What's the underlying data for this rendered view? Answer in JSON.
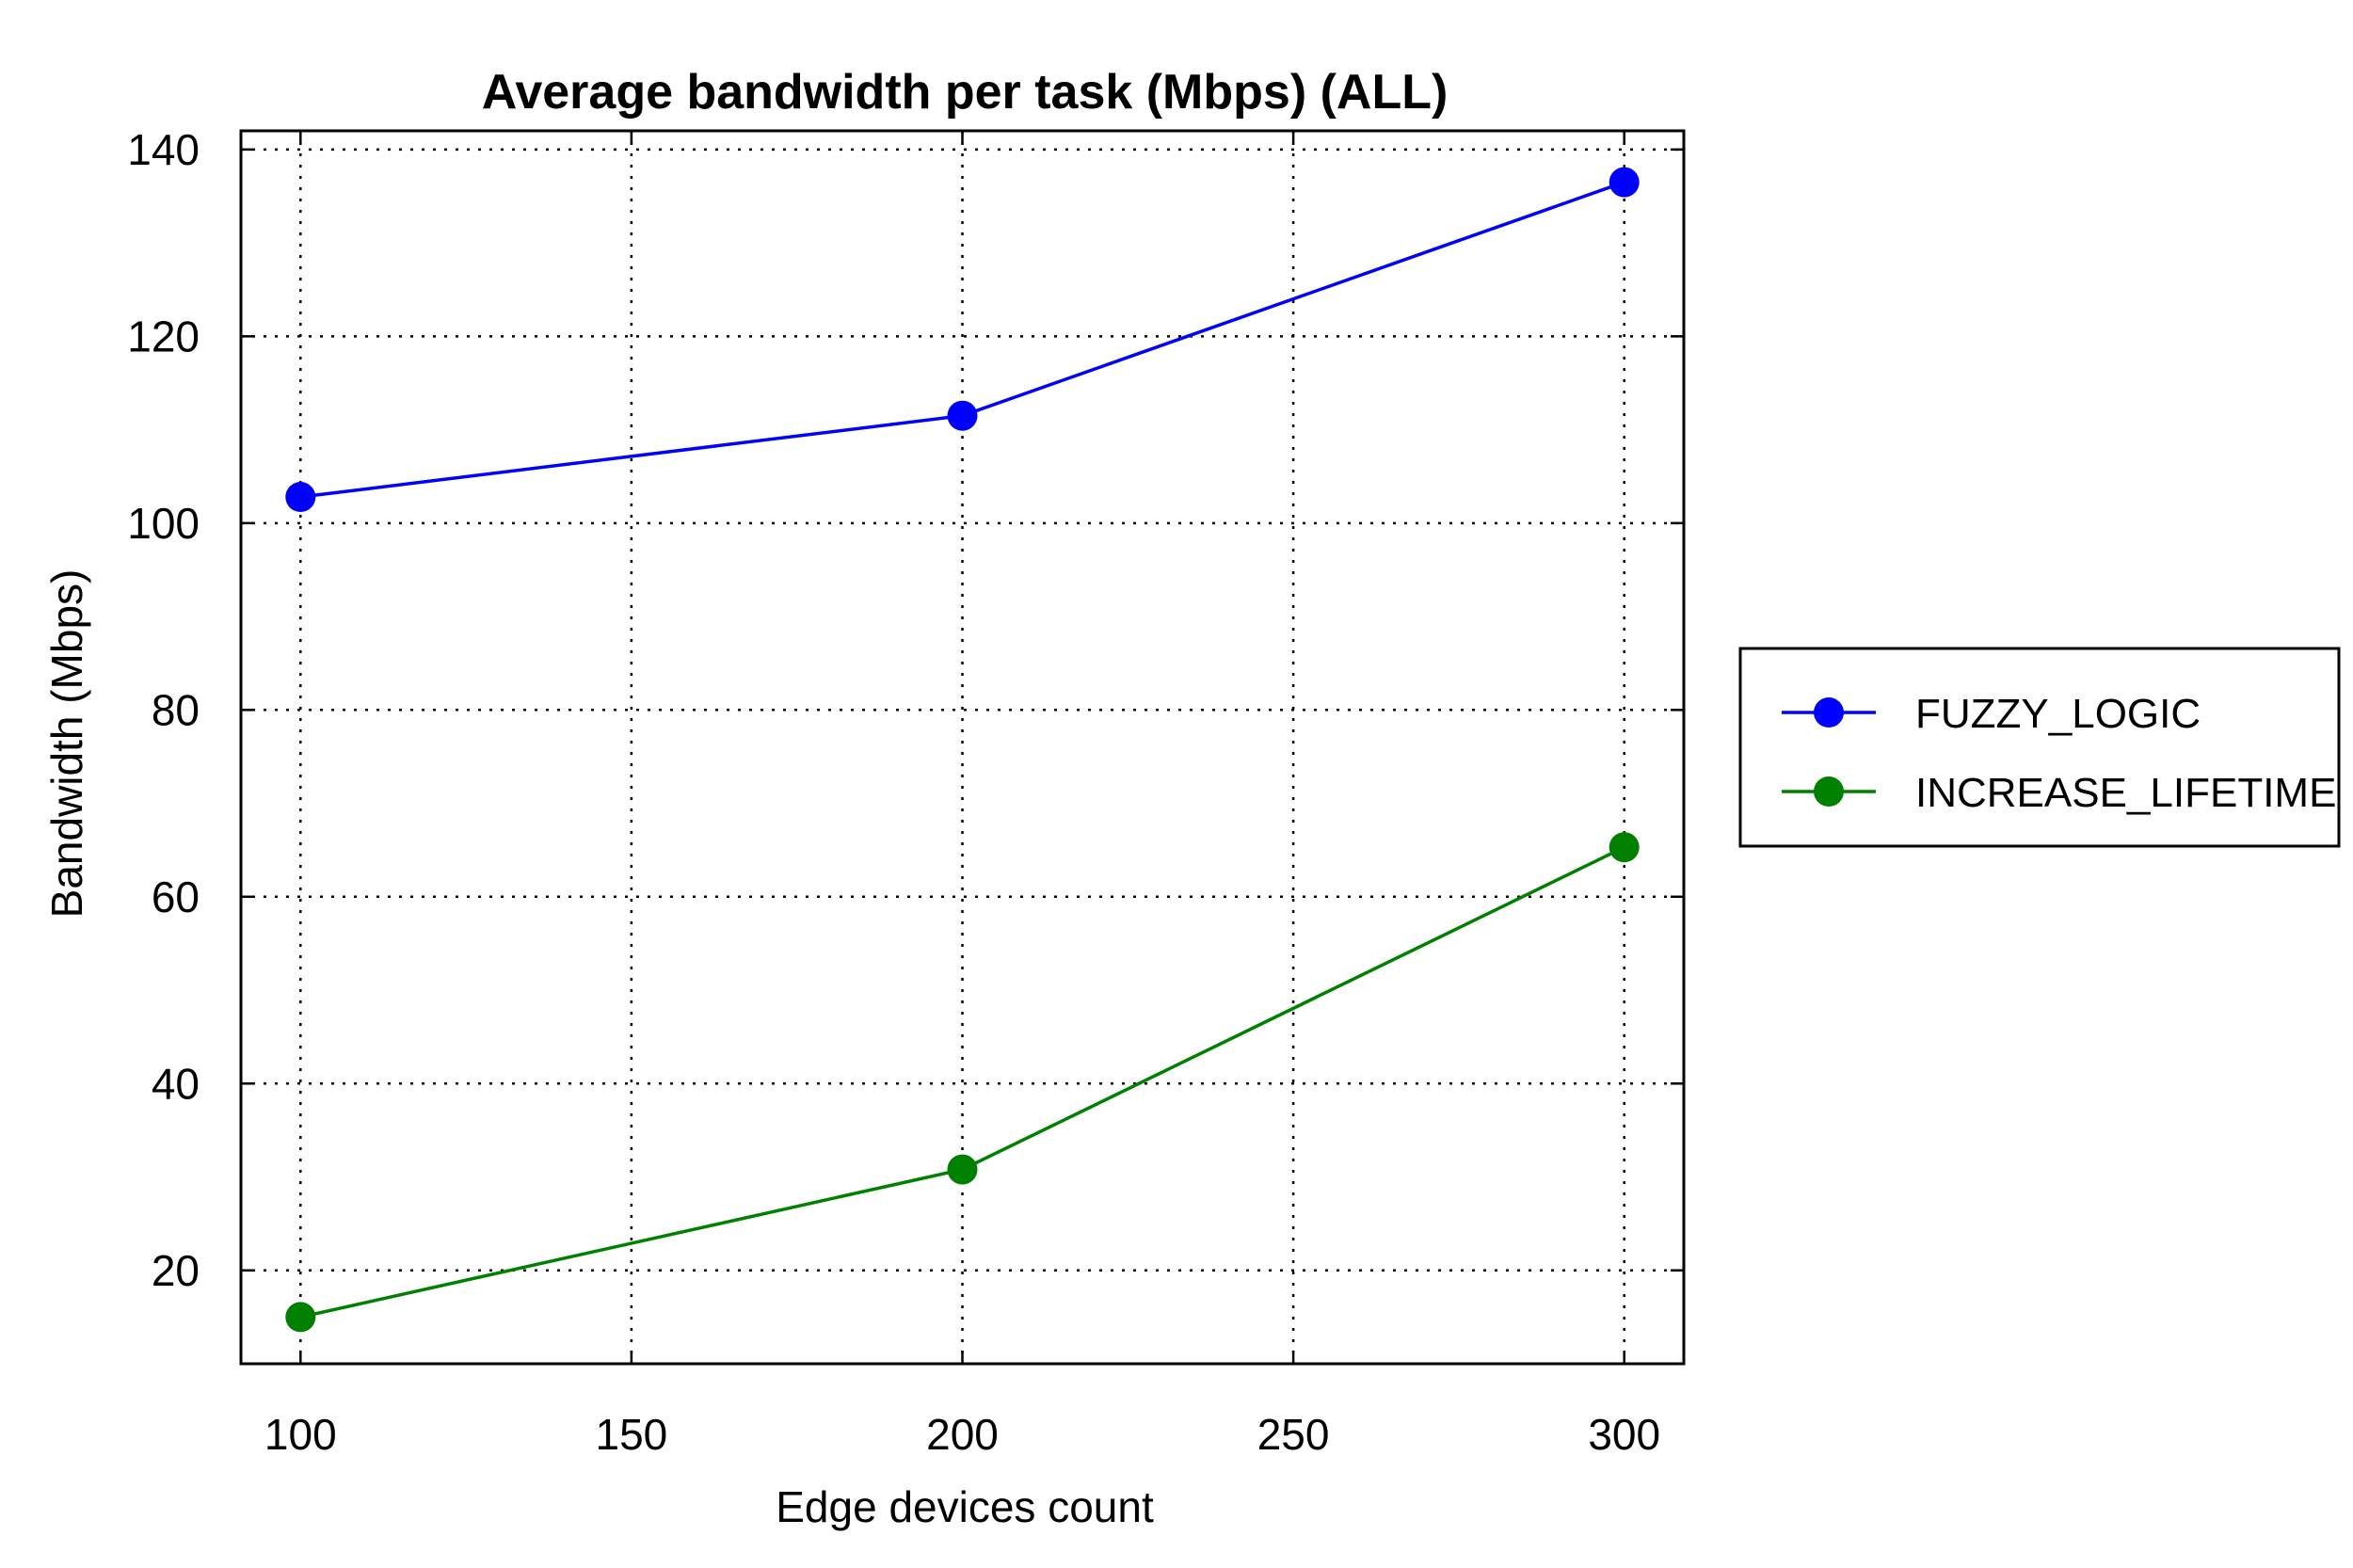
{
  "chart_data": {
    "type": "line",
    "title": "Average bandwidth per task (Mbps) (ALL)",
    "xlabel": "Edge devices count",
    "ylabel": "Bandwidth (Mbps)",
    "x": [
      100,
      200,
      300
    ],
    "xlim": [
      91,
      309
    ],
    "ylim": [
      10,
      142
    ],
    "xticks": [
      100,
      150,
      200,
      250,
      300
    ],
    "yticks": [
      20,
      40,
      60,
      80,
      100,
      120,
      140
    ],
    "grid": true,
    "legend_position": "right",
    "series": [
      {
        "name": "FUZZY_LOGIC",
        "color": "#0000ff",
        "marker": "circle",
        "values": [
          102.8,
          111.5,
          136.5
        ]
      },
      {
        "name": "INCREASE_LIFETIME",
        "color": "#008000",
        "marker": "circle",
        "values": [
          15.0,
          30.8,
          65.3
        ]
      }
    ]
  }
}
